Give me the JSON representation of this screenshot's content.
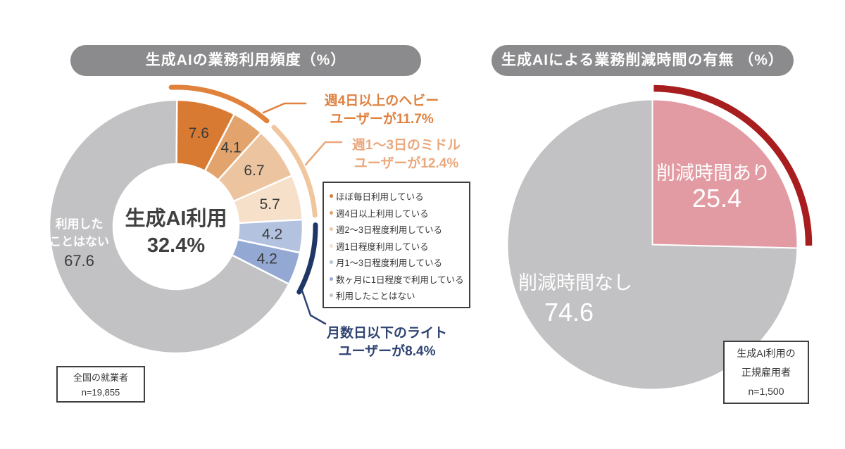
{
  "left_chart": {
    "title": "生成AIの業務利用頻度（%）",
    "center_label": "生成AI利用",
    "center_value": "32.4%",
    "gray_segment": {
      "label_line1": "利用した",
      "label_line2": "ことはない",
      "value": "67.6"
    },
    "annotations": {
      "heavy": {
        "line1": "週4日以上のヘビー",
        "line2": "ユーザーが11.7%",
        "text_color": "#E0813F",
        "arc_color": "#E0813C"
      },
      "middle": {
        "line1": "週1〜3日のミドル",
        "line2": "ユーザーが12.4%",
        "text_color": "#EAA87C",
        "arc_color": "#F0C69F"
      },
      "light": {
        "line1": "月数日以下のライト",
        "line2": "ユーザーが8.4%",
        "text_color": "#2E4372",
        "arc_color": "#1E3765"
      }
    },
    "legend": [
      {
        "label": "ほぼ毎日利用している",
        "color": "#D97A33"
      },
      {
        "label": "週4日以上利用している",
        "color": "#E2A36C"
      },
      {
        "label": "週2〜3日程度利用している",
        "color": "#ECC5A0"
      },
      {
        "label": "週1日程度利用している",
        "color": "#F6E0CA"
      },
      {
        "label": "月1〜3日程度利用している",
        "color": "#B2C2DF"
      },
      {
        "label": "数ヶ月に1日程度で利用している",
        "color": "#93A9D4"
      },
      {
        "label": "利用したことはない",
        "color": "#C2C2C4"
      }
    ],
    "note_line1": "全国の就業者",
    "note_line2": "n=19,855"
  },
  "right_chart": {
    "title": "生成AIによる業務削減時間の有無 （%）",
    "slice_yes_label": "削減時間あり",
    "slice_yes_value": "25.4",
    "slice_no_label": "削減時間なし",
    "slice_no_value": "74.6",
    "note_line1": "生成AI利用の",
    "note_line2": "正規雇用者",
    "note_line3": "n=1,500"
  },
  "chart_data": [
    {
      "type": "pie",
      "donut": true,
      "title": "生成AIの業務利用頻度（%）",
      "center_label": "生成AI利用 32.4%",
      "labels": [
        "ほぼ毎日利用している",
        "週4日以上利用している",
        "週2〜3日程度利用している",
        "週1日程度利用している",
        "月1〜3日程度利用している",
        "数ヶ月に1日程度で利用している",
        "利用したことはない"
      ],
      "values": [
        7.6,
        4.1,
        6.7,
        5.7,
        4.2,
        4.2,
        67.6
      ],
      "colors": [
        "#D97A33",
        "#E2A36C",
        "#ECC5A0",
        "#F6E0CA",
        "#B2C2DF",
        "#93A9D4",
        "#C2C2C4"
      ],
      "groups": [
        {
          "label": "週4日以上のヘビーユーザー",
          "value": 11.7
        },
        {
          "label": "週1〜3日のミドルユーザー",
          "value": 12.4
        },
        {
          "label": "月数日以下のライトユーザー",
          "value": 8.4
        }
      ],
      "sample": "全国の就業者 n=19,855",
      "legend_position": "right"
    },
    {
      "type": "pie",
      "donut": false,
      "title": "生成AIによる業務削減時間の有無（%）",
      "labels": [
        "削減時間あり",
        "削減時間なし"
      ],
      "values": [
        25.4,
        74.6
      ],
      "colors": [
        "#E29BA3",
        "#C2C2C4"
      ],
      "highlight_arc_color": "#A81D1E",
      "sample": "生成AI利用の正規雇用者 n=1,500",
      "legend_position": "none"
    }
  ]
}
